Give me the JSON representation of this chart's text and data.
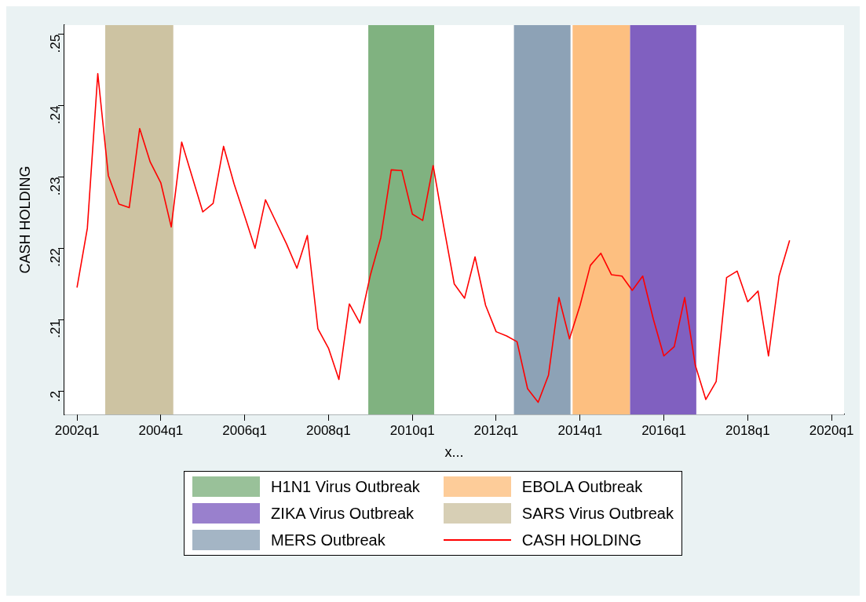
{
  "chart_data": {
    "type": "line",
    "xlabel": "x...",
    "ylabel": "CASH HOLDING",
    "x": [
      "2002-01",
      "2002-04",
      "2002-07",
      "2002-10",
      "2003-01",
      "2003-04",
      "2003-07",
      "2003-10",
      "2004-01",
      "2004-04",
      "2004-07",
      "2004-10",
      "2005-01",
      "2005-04",
      "2005-07",
      "2005-10",
      "2006-01",
      "2006-04",
      "2006-07",
      "2006-10",
      "2007-01",
      "2007-04",
      "2007-07",
      "2007-10",
      "2008-01",
      "2008-04",
      "2008-07",
      "2008-10",
      "2009-01",
      "2009-04",
      "2009-07",
      "2009-10",
      "2010-01",
      "2010-04",
      "2010-07",
      "2010-10",
      "2011-01",
      "2011-04",
      "2011-07",
      "2011-10",
      "2012-01",
      "2012-04",
      "2012-07",
      "2012-10",
      "2013-01",
      "2013-04",
      "2013-07",
      "2013-10",
      "2014-01",
      "2014-04",
      "2014-07",
      "2014-10",
      "2015-01",
      "2015-04",
      "2015-07",
      "2015-10",
      "2016-01",
      "2016-04",
      "2016-07",
      "2016-10",
      "2017-01",
      "2017-04",
      "2017-07",
      "2017-10",
      "2018-01",
      "2018-04",
      "2018-07",
      "2018-10",
      "2019-01"
    ],
    "series": [
      {
        "name": "CASH HOLDING",
        "color": "#ff0000",
        "values": [
          0.2145,
          0.2228,
          0.2445,
          0.2302,
          0.2262,
          0.2257,
          0.2368,
          0.2321,
          0.2292,
          0.223,
          0.2349,
          0.23,
          0.2251,
          0.2263,
          0.2343,
          0.229,
          0.2245,
          0.22,
          0.2268,
          0.2237,
          0.2206,
          0.2172,
          0.2218,
          0.2087,
          0.206,
          0.2016,
          0.2122,
          0.2095,
          0.2163,
          0.2215,
          0.231,
          0.2309,
          0.2248,
          0.2239,
          0.2316,
          0.2231,
          0.215,
          0.213,
          0.2188,
          0.212,
          0.2083,
          0.2077,
          0.2069,
          0.2003,
          0.1984,
          0.2022,
          0.2131,
          0.2073,
          0.212,
          0.2176,
          0.2193,
          0.2163,
          0.2161,
          0.2141,
          0.2161,
          0.2101,
          0.2049,
          0.2062,
          0.2131,
          0.2036,
          0.1988,
          0.2013,
          0.2159,
          0.2168,
          0.2125,
          0.214,
          0.2049,
          0.2161,
          0.2211
        ]
      }
    ],
    "bands": [
      {
        "axis": "x",
        "from": "2008-12-13",
        "to": "2010-07-10",
        "label": "H1N1 Virus Outbreak",
        "color": "#80b280"
      },
      {
        "axis": "x",
        "from": "2013-10-28",
        "to": "2015-03-13",
        "label": "EBOLA Outbreak",
        "color": "#fdbf80"
      },
      {
        "axis": "x",
        "from": "2015-03-13",
        "to": "2016-10-10",
        "label": "ZIKA Virus Outbreak",
        "color": "#8060c0"
      },
      {
        "axis": "x",
        "from": "2002-09-04",
        "to": "2004-04-19",
        "label": "SARS Virus Outbreak",
        "color": "#cdc3a2"
      },
      {
        "axis": "x",
        "from": "2012-06-04",
        "to": "2013-10-10",
        "label": "MERS Outbreak",
        "color": "#8da2b6"
      }
    ],
    "xlim": [
      "2001-09-13",
      "2020-04-19"
    ],
    "xticks": [
      {
        "value": "2002-01",
        "label": "2002q1"
      },
      {
        "value": "2004-01",
        "label": "2004q1"
      },
      {
        "value": "2006-01",
        "label": "2006q1"
      },
      {
        "value": "2008-01",
        "label": "2008q1"
      },
      {
        "value": "2010-01",
        "label": "2010q1"
      },
      {
        "value": "2012-01",
        "label": "2012q1"
      },
      {
        "value": "2014-01",
        "label": "2014q1"
      },
      {
        "value": "2016-01",
        "label": "2016q1"
      },
      {
        "value": "2018-01",
        "label": "2018q1"
      },
      {
        "value": "2020-01",
        "label": "2020q1"
      }
    ],
    "ylim": [
      0.1967,
      0.2513
    ],
    "yticks": [
      {
        "value": 0.2,
        "label": ".2"
      },
      {
        "value": 0.21,
        "label": ".21"
      },
      {
        "value": 0.22,
        "label": ".22"
      },
      {
        "value": 0.23,
        "label": ".23"
      },
      {
        "value": 0.24,
        "label": ".24"
      },
      {
        "value": 0.25,
        "label": ".25"
      }
    ],
    "legend": "bottom",
    "marker": "none",
    "line_style": "solid"
  }
}
